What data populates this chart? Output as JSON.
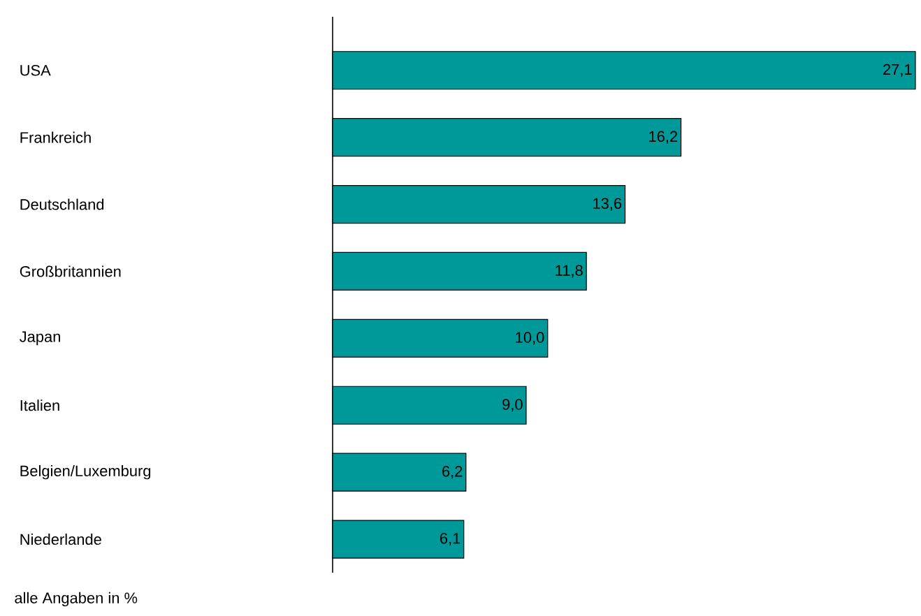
{
  "chart_data": {
    "type": "bar",
    "orientation": "horizontal",
    "categories": [
      "USA",
      "Frankreich",
      "Deutschland",
      "Großbritannien",
      "Japan",
      "Italien",
      "Belgien/Luxemburg",
      "Niederlande"
    ],
    "values": [
      27.1,
      16.2,
      13.6,
      11.8,
      10.0,
      9.0,
      6.2,
      6.1
    ],
    "value_labels": [
      "27,1",
      "16,2",
      "13,6",
      "11,8",
      "10,0",
      "9,0",
      "6,2",
      "6,1"
    ],
    "color": "#009999",
    "annotations": [
      "alle Angaben in %"
    ]
  }
}
